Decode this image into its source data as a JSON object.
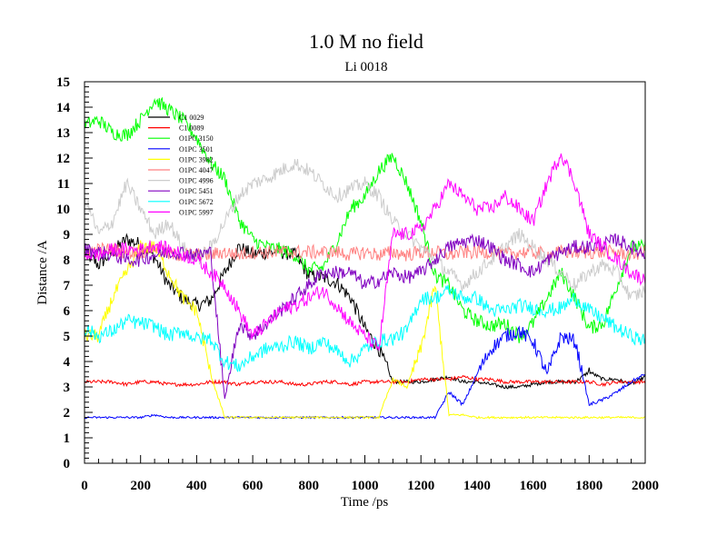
{
  "chart_data": {
    "type": "line",
    "title": "1.0 M no field",
    "subtitle": "Li 0018",
    "xlabel": "Time /ps",
    "ylabel": "Distance /A",
    "xlim": [
      0,
      2000
    ],
    "ylim": [
      0,
      15
    ],
    "x_ticks": [
      "0",
      "200",
      "400",
      "600",
      "800",
      "1000",
      "1200",
      "1400",
      "1600",
      "1800",
      "2000"
    ],
    "y_ticks": [
      "0",
      "1",
      "2",
      "3",
      "4",
      "5",
      "6",
      "7",
      "8",
      "9",
      "10",
      "11",
      "12",
      "13",
      "14",
      "15"
    ],
    "legend_position": "top-left",
    "x": [
      0,
      50,
      100,
      150,
      200,
      250,
      300,
      350,
      400,
      450,
      500,
      550,
      600,
      650,
      700,
      750,
      800,
      850,
      900,
      950,
      1000,
      1050,
      1100,
      1150,
      1200,
      1250,
      1300,
      1350,
      1400,
      1450,
      1500,
      1550,
      1600,
      1650,
      1700,
      1750,
      1800,
      1850,
      1900,
      1950,
      2000
    ],
    "series": [
      {
        "name": "C1 0029",
        "color": "#000000",
        "values": [
          8.3,
          7.8,
          8.3,
          8.8,
          8.6,
          8.1,
          7.0,
          6.5,
          6.2,
          6.4,
          7.5,
          8.5,
          8.2,
          8.3,
          8.3,
          8.2,
          7.4,
          7.3,
          7.1,
          6.5,
          5.3,
          4.5,
          3.2,
          3.2,
          3.2,
          3.3,
          3.4,
          3.2,
          3.2,
          3.1,
          3.0,
          3.0,
          3.1,
          3.2,
          3.2,
          3.2,
          3.6,
          3.3,
          3.3,
          3.1,
          3.4
        ]
      },
      {
        "name": "C1 0089",
        "color": "#ff0000",
        "values": [
          3.2,
          3.2,
          3.2,
          3.1,
          3.2,
          3.2,
          3.1,
          3.1,
          3.1,
          3.2,
          3.2,
          3.1,
          3.2,
          3.2,
          3.2,
          3.1,
          3.1,
          3.2,
          3.2,
          3.1,
          3.2,
          3.2,
          3.2,
          3.2,
          3.3,
          3.3,
          3.3,
          3.4,
          3.3,
          3.3,
          3.2,
          3.2,
          3.2,
          3.2,
          3.2,
          3.2,
          3.2,
          3.1,
          3.2,
          3.2,
          3.2
        ]
      },
      {
        "name": "O1PC 3150",
        "color": "#00ff00",
        "values": [
          13.3,
          13.5,
          13.0,
          12.9,
          13.5,
          14.3,
          13.9,
          13.5,
          12.8,
          11.8,
          11.2,
          9.6,
          8.8,
          8.5,
          8.4,
          8.2,
          7.6,
          7.7,
          8.7,
          10.0,
          10.5,
          11.5,
          12.1,
          11.0,
          9.5,
          7.4,
          7.0,
          6.0,
          5.6,
          5.4,
          5.5,
          5.0,
          5.5,
          6.5,
          7.5,
          6.5,
          5.3,
          5.5,
          7.0,
          8.5,
          8.5
        ]
      },
      {
        "name": "O1PC 3501",
        "color": "#0000ff",
        "values": [
          1.8,
          1.8,
          1.8,
          1.8,
          1.8,
          1.9,
          1.8,
          1.8,
          1.8,
          1.8,
          1.8,
          1.8,
          1.8,
          1.8,
          1.8,
          1.8,
          1.8,
          1.8,
          1.8,
          1.8,
          1.8,
          1.8,
          1.8,
          1.8,
          1.8,
          1.8,
          2.8,
          2.3,
          3.5,
          4.5,
          5.0,
          5.2,
          4.8,
          3.5,
          5.0,
          4.8,
          2.3,
          2.5,
          2.8,
          3.2,
          3.5
        ]
      },
      {
        "name": "O1PC 3982",
        "color": "#ffff00",
        "values": [
          5.0,
          5.0,
          6.5,
          7.5,
          8.5,
          8.5,
          7.5,
          6.5,
          6.0,
          3.5,
          1.8,
          1.8,
          1.8,
          1.8,
          1.8,
          1.8,
          1.8,
          1.8,
          1.8,
          1.8,
          1.8,
          1.8,
          3.3,
          3.0,
          4.5,
          7.0,
          1.9,
          1.9,
          1.8,
          1.8,
          1.8,
          1.8,
          1.8,
          1.8,
          1.8,
          1.8,
          1.8,
          1.8,
          1.8,
          1.8,
          1.8
        ]
      },
      {
        "name": "O1PC 4047",
        "color": "#ff8080",
        "values": [
          8.3,
          8.4,
          8.4,
          8.3,
          8.3,
          8.5,
          8.2,
          8.2,
          8.2,
          8.2,
          8.3,
          8.2,
          8.3,
          8.3,
          8.3,
          8.3,
          8.3,
          8.3,
          8.3,
          8.2,
          8.3,
          8.2,
          8.3,
          8.2,
          8.3,
          8.3,
          8.2,
          8.3,
          8.3,
          8.3,
          8.2,
          8.3,
          8.3,
          8.2,
          8.3,
          8.3,
          8.3,
          8.3,
          8.3,
          8.2,
          8.3
        ]
      },
      {
        "name": "O1PC 4996",
        "color": "#cccccc",
        "values": [
          10.5,
          9.0,
          9.5,
          11.0,
          10.0,
          9.0,
          9.5,
          8.5,
          8.0,
          8.5,
          9.5,
          10.5,
          11.0,
          11.2,
          11.5,
          11.8,
          11.5,
          11.0,
          10.5,
          10.8,
          11.0,
          10.5,
          9.5,
          9.0,
          8.5,
          8.0,
          7.5,
          7.0,
          7.5,
          8.0,
          8.5,
          9.0,
          8.5,
          8.0,
          7.5,
          7.0,
          7.5,
          7.8,
          7.5,
          6.5,
          6.8
        ]
      },
      {
        "name": "O1PC 5451",
        "color": "#8000c0",
        "values": [
          8.4,
          8.3,
          8.2,
          8.0,
          8.0,
          8.2,
          8.3,
          8.3,
          8.2,
          8.3,
          2.5,
          5.5,
          5.0,
          5.5,
          6.0,
          6.5,
          7.0,
          7.5,
          7.5,
          7.5,
          7.0,
          7.2,
          7.5,
          7.3,
          7.5,
          8.0,
          8.5,
          8.7,
          8.8,
          8.5,
          8.0,
          7.8,
          7.5,
          8.0,
          8.3,
          8.5,
          8.5,
          8.6,
          8.8,
          8.5,
          8.2
        ]
      },
      {
        "name": "O1PC 5672",
        "color": "#00ffff",
        "values": [
          5.3,
          5.0,
          5.2,
          5.6,
          5.5,
          5.4,
          5.0,
          5.2,
          4.9,
          4.9,
          4.0,
          3.8,
          4.2,
          4.5,
          4.6,
          4.8,
          4.5,
          4.8,
          4.4,
          4.0,
          4.5,
          4.8,
          4.9,
          5.2,
          6.5,
          6.5,
          6.8,
          6.5,
          6.5,
          6.0,
          6.0,
          6.2,
          6.1,
          6.0,
          6.1,
          6.5,
          6.0,
          5.7,
          5.3,
          5.0,
          4.8
        ]
      },
      {
        "name": "O1PC 5997",
        "color": "#ff00ff",
        "values": [
          8.2,
          8.2,
          8.4,
          8.4,
          8.4,
          8.6,
          8.4,
          8.2,
          8.0,
          7.5,
          7.0,
          6.0,
          5.0,
          5.5,
          6.0,
          6.2,
          6.5,
          6.8,
          6.2,
          5.5,
          5.0,
          4.5,
          9.0,
          9.0,
          9.2,
          10.0,
          11.0,
          10.5,
          10.0,
          10.0,
          10.5,
          10.0,
          9.5,
          11.0,
          12.2,
          11.0,
          9.0,
          8.5,
          8.0,
          7.5,
          7.2
        ]
      }
    ]
  }
}
